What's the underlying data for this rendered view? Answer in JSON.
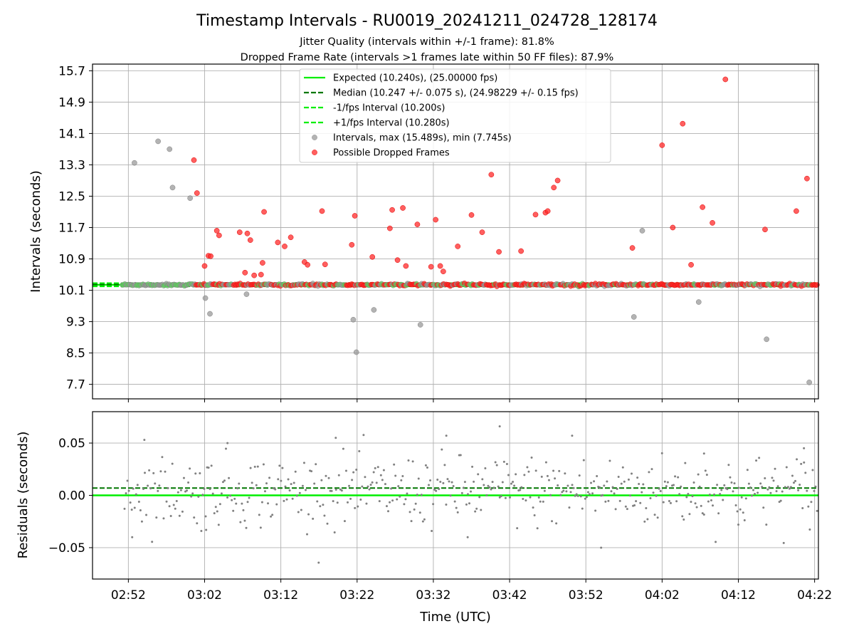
{
  "chart_data": [
    {
      "type": "scatter",
      "title": "Timestamp Intervals - RU0019_20241211_024728_128174",
      "subtitle_lines": [
        "Jitter Quality (intervals within +/-1 frame): 81.8%",
        "Dropped Frame Rate (intervals >1 frames late within 50 FF files): 87.9%"
      ],
      "xlabel": "",
      "ylabel": "Intervals (seconds)",
      "x_unit": "minutes since 02:52 UTC",
      "xlim": [
        -4.7,
        90.5
      ],
      "ylim": [
        7.33,
        15.87
      ],
      "x_tick_labels": [
        "02:52",
        "03:02",
        "03:12",
        "03:22",
        "03:32",
        "03:42",
        "03:52",
        "04:02",
        "04:12",
        "04:22"
      ],
      "y_ticks": [
        7.7,
        8.5,
        9.3,
        10.1,
        10.9,
        11.7,
        12.5,
        13.3,
        14.1,
        14.9,
        15.7
      ],
      "grid": true,
      "legend_position": "top-center",
      "lines": {
        "expected": 10.24,
        "median": 10.247,
        "minus_interval": 10.2,
        "plus_interval": 10.28
      },
      "legend": [
        {
          "label": "Expected (10.240s), (25.00000 fps)",
          "style": "solid",
          "color": "#00ee00"
        },
        {
          "label": "Median (10.247 +/- 0.075 s), (24.98229 +/- 0.15 fps)",
          "style": "dashed",
          "color": "#007700"
        },
        {
          "label": "-1/fps Interval (10.200s)",
          "style": "dashed",
          "color": "#00ee00"
        },
        {
          "label": "+1/fps Interval (10.280s)",
          "style": "dashed",
          "color": "#00ee00"
        },
        {
          "label": "Intervals, max (15.489s), min (7.745s)",
          "style": "marker",
          "color": "#9a9a9a"
        },
        {
          "label": "Possible Dropped Frames",
          "style": "marker",
          "color": "#ff2a2a"
        }
      ],
      "series": [
        {
          "name": "Intervals, max (15.489s), min (7.745s)",
          "color": "#9a9a9a",
          "points": [
            [
              0.8,
              13.35
            ],
            [
              3.9,
              13.9
            ],
            [
              5.4,
              13.7
            ],
            [
              5.8,
              12.72
            ],
            [
              8.1,
              12.45
            ],
            [
              10.1,
              9.9
            ],
            [
              10.7,
              9.5
            ],
            [
              15.5,
              10.0
            ],
            [
              29.5,
              9.35
            ],
            [
              29.9,
              8.52
            ],
            [
              32.2,
              9.6
            ],
            [
              38.3,
              9.22
            ],
            [
              66.3,
              9.42
            ],
            [
              67.4,
              11.62
            ],
            [
              74.8,
              9.8
            ],
            [
              83.7,
              8.85
            ],
            [
              89.3,
              7.75
            ]
          ]
        },
        {
          "name": "Possible Dropped Frames",
          "color": "#ff2a2a",
          "points": [
            [
              8.6,
              13.42
            ],
            [
              9.0,
              12.58
            ],
            [
              10.0,
              10.72
            ],
            [
              10.5,
              10.98
            ],
            [
              10.8,
              10.97
            ],
            [
              11.6,
              11.62
            ],
            [
              11.9,
              11.5
            ],
            [
              14.6,
              11.58
            ],
            [
              15.3,
              10.55
            ],
            [
              15.6,
              11.55
            ],
            [
              16.0,
              11.38
            ],
            [
              16.5,
              10.48
            ],
            [
              17.4,
              10.5
            ],
            [
              17.6,
              10.8
            ],
            [
              17.8,
              12.1
            ],
            [
              19.6,
              11.32
            ],
            [
              20.5,
              11.22
            ],
            [
              21.3,
              11.45
            ],
            [
              23.1,
              10.82
            ],
            [
              23.5,
              10.75
            ],
            [
              25.4,
              12.12
            ],
            [
              25.8,
              10.76
            ],
            [
              29.3,
              11.26
            ],
            [
              29.7,
              12.0
            ],
            [
              32.0,
              10.95
            ],
            [
              34.3,
              11.68
            ],
            [
              34.6,
              12.15
            ],
            [
              35.3,
              10.87
            ],
            [
              36.0,
              12.2
            ],
            [
              36.4,
              10.72
            ],
            [
              37.9,
              11.78
            ],
            [
              39.7,
              10.7
            ],
            [
              40.3,
              11.9
            ],
            [
              40.9,
              10.72
            ],
            [
              41.3,
              10.58
            ],
            [
              43.2,
              11.22
            ],
            [
              45.0,
              12.02
            ],
            [
              46.4,
              11.58
            ],
            [
              47.6,
              13.05
            ],
            [
              48.6,
              11.08
            ],
            [
              51.5,
              11.1
            ],
            [
              53.4,
              12.03
            ],
            [
              54.7,
              12.08
            ],
            [
              55.0,
              12.12
            ],
            [
              55.8,
              12.72
            ],
            [
              56.3,
              12.9
            ],
            [
              66.1,
              11.18
            ],
            [
              70.0,
              13.8
            ],
            [
              71.4,
              11.7
            ],
            [
              72.7,
              14.35
            ],
            [
              73.8,
              10.75
            ],
            [
              75.3,
              12.22
            ],
            [
              76.6,
              11.82
            ],
            [
              78.3,
              15.48
            ],
            [
              83.5,
              11.65
            ],
            [
              87.6,
              12.12
            ],
            [
              89.0,
              12.95
            ]
          ]
        }
      ]
    },
    {
      "type": "scatter",
      "title": "",
      "xlabel": "Time (UTC)",
      "ylabel": "Residuals (seconds)",
      "x_unit": "minutes since 02:52 UTC",
      "xlim": [
        -4.7,
        90.5
      ],
      "ylim": [
        -0.08,
        0.08
      ],
      "y_ticks": [
        -0.05,
        0.0,
        0.05
      ],
      "y_tick_labels": [
        "−0.05",
        "0.00",
        "0.05"
      ],
      "x_tick_labels": [
        "02:52",
        "03:02",
        "03:12",
        "03:22",
        "03:32",
        "03:42",
        "03:52",
        "04:02",
        "04:12",
        "04:22"
      ],
      "grid": true,
      "lines": {
        "expected": 0.0,
        "median": 0.007
      },
      "residual_color": "#808080",
      "highlight_residuals": [
        [
          2.1,
          0.053
        ],
        [
          0.5,
          -0.04
        ],
        [
          10.2,
          -0.033
        ],
        [
          13.0,
          0.05
        ],
        [
          27.2,
          0.055
        ],
        [
          41.7,
          0.057
        ],
        [
          44.5,
          -0.04
        ],
        [
          48.7,
          0.066
        ],
        [
          58.2,
          0.057
        ],
        [
          62.0,
          -0.05
        ],
        [
          75.5,
          0.04
        ],
        [
          80.0,
          -0.028
        ],
        [
          88.6,
          0.045
        ]
      ]
    }
  ]
}
